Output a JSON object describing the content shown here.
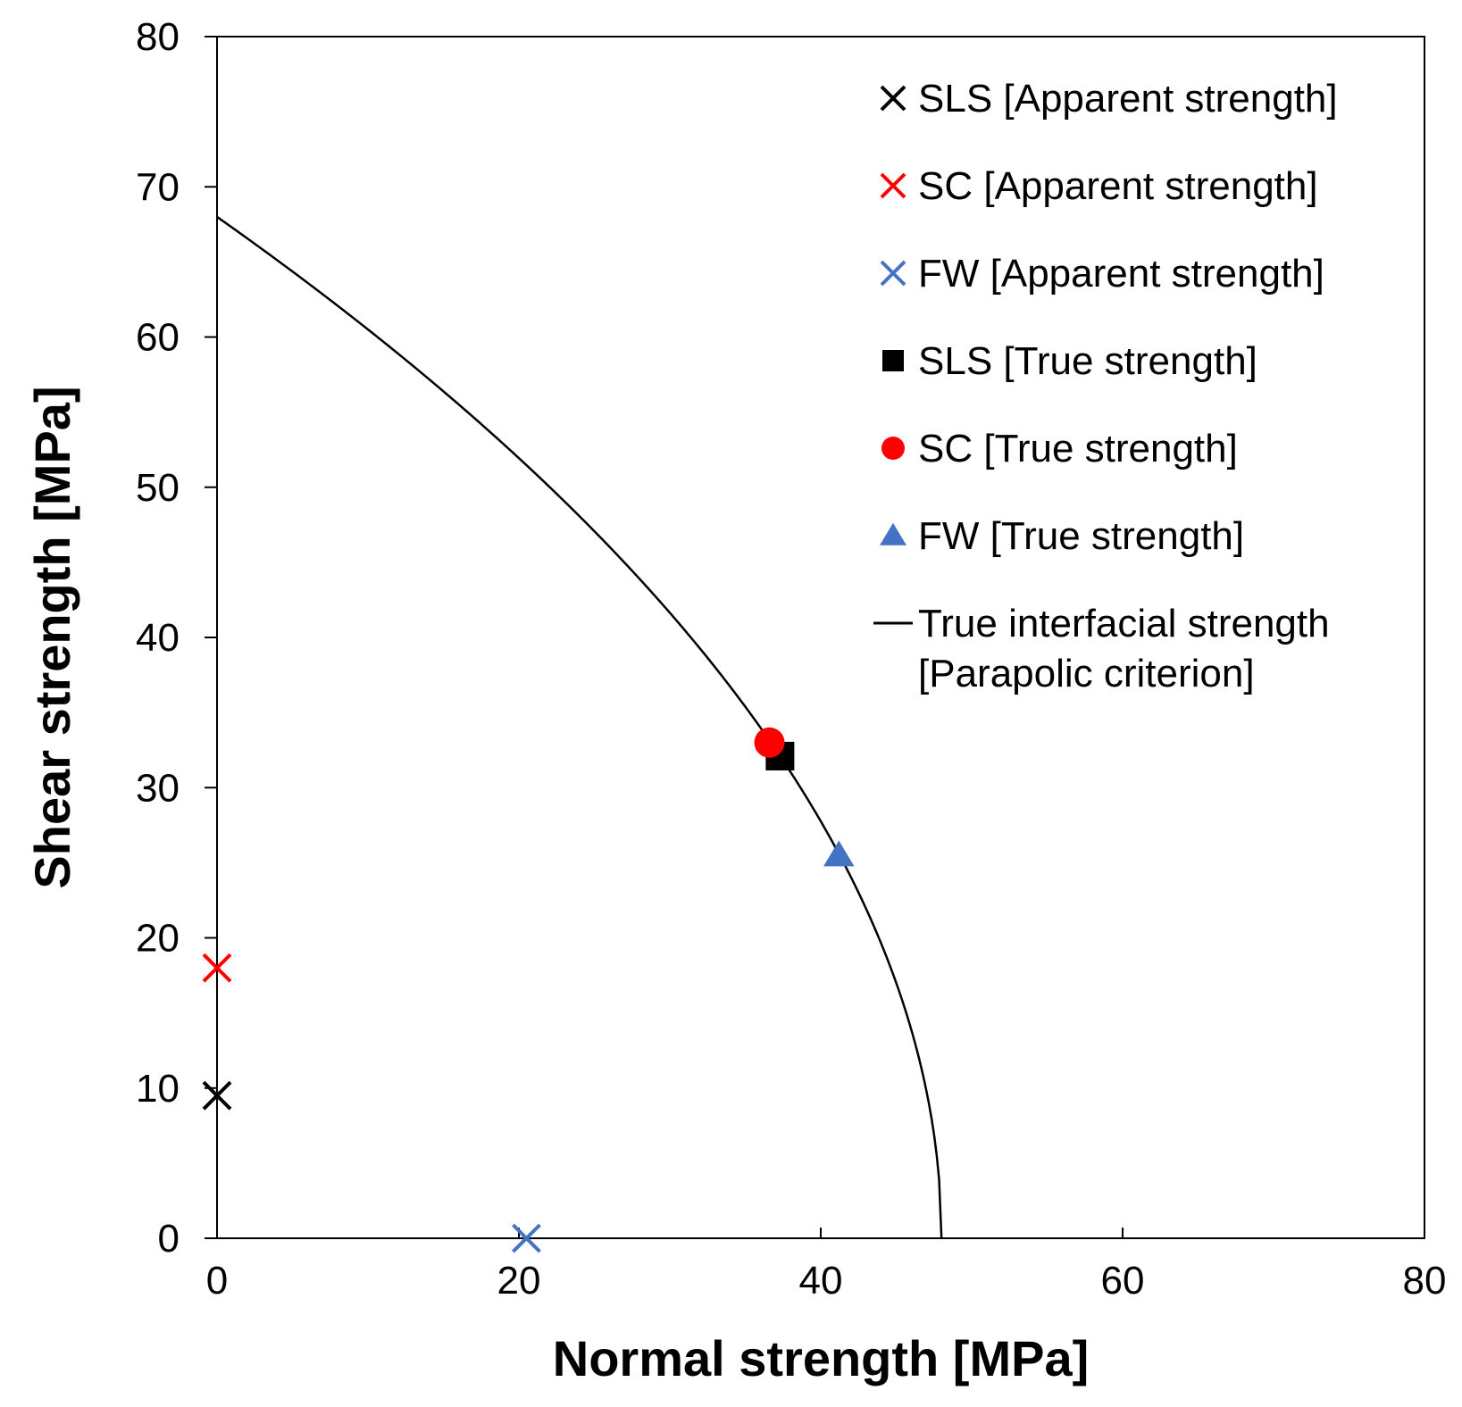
{
  "chart_data": {
    "type": "scatter",
    "xlabel": "Normal strength [MPa]",
    "ylabel": "Shear strength [MPa]",
    "xlim": [
      0,
      80
    ],
    "ylim": [
      0,
      80
    ],
    "x_ticks": [
      0,
      20,
      40,
      60,
      80
    ],
    "y_ticks": [
      0,
      10,
      20,
      30,
      40,
      50,
      60,
      70,
      80
    ],
    "grid": false,
    "legend_position": "top-right",
    "series": [
      {
        "name": "SLS [Apparent strength]",
        "marker": "x",
        "color": "#000000",
        "points": [
          {
            "x": 0,
            "y": 9.5
          }
        ]
      },
      {
        "name": "SC [Apparent strength]",
        "marker": "x",
        "color": "#ff0000",
        "points": [
          {
            "x": 0,
            "y": 18
          }
        ]
      },
      {
        "name": "FW [Apparent strength]",
        "marker": "x",
        "color": "#4472c4",
        "points": [
          {
            "x": 20.5,
            "y": 0
          }
        ]
      },
      {
        "name": "SLS [True strength]",
        "marker": "square",
        "color": "#000000",
        "points": [
          {
            "x": 37.3,
            "y": 32.1
          }
        ]
      },
      {
        "name": "SC [True strength]",
        "marker": "circle",
        "color": "#ff0000",
        "points": [
          {
            "x": 36.6,
            "y": 33
          }
        ]
      },
      {
        "name": "FW [True strength]",
        "marker": "triangle",
        "color": "#4472c4",
        "points": [
          {
            "x": 41.2,
            "y": 25.5
          }
        ]
      },
      {
        "name": "True interfacial strength",
        "name_line2": "[Parapolic criterion]",
        "marker": "line",
        "color": "#000000",
        "curve": {
          "normal_strength": 48,
          "shear_strength": 68
        }
      }
    ]
  }
}
